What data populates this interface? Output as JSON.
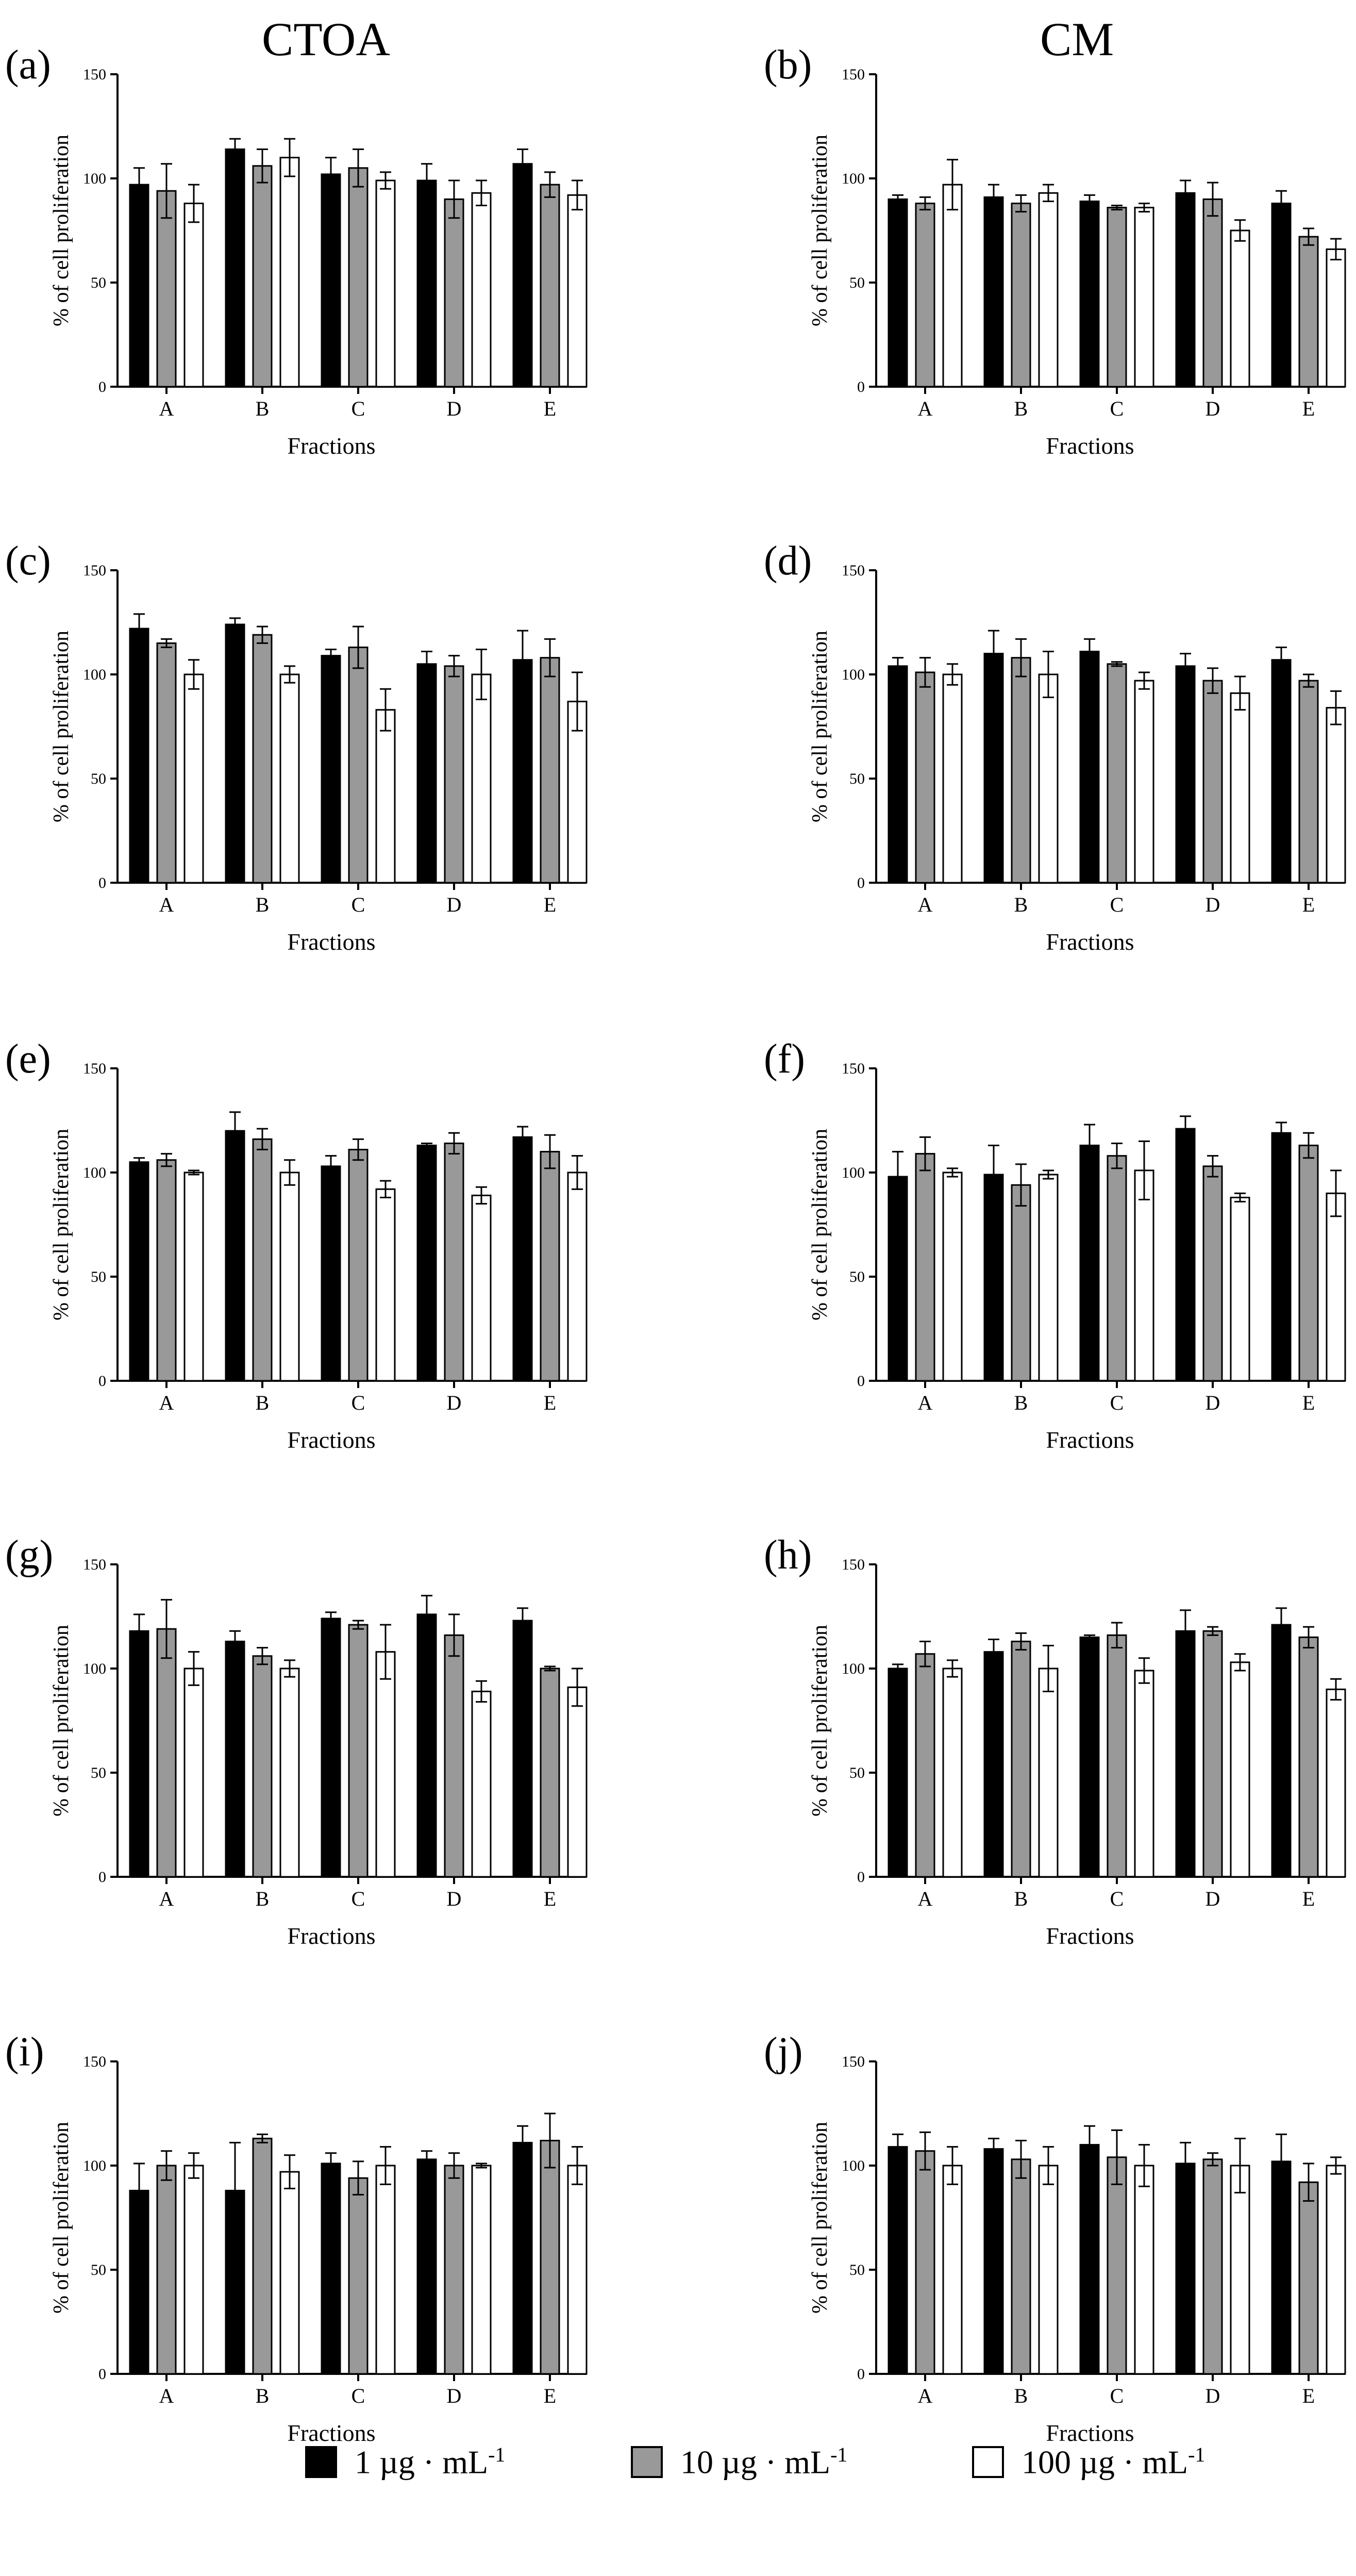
{
  "column_titles": {
    "left": "CTOA",
    "right": "CM"
  },
  "colors": {
    "1": "#000000",
    "10": "#999999",
    "100": "#ffffff"
  },
  "legend": [
    {
      "key": "1",
      "text": "1 µg · mL",
      "sup": "-1"
    },
    {
      "key": "10",
      "text": "10 µg · mL",
      "sup": "-1"
    },
    {
      "key": "100",
      "text": "100 µg · mL",
      "sup": "-1"
    }
  ],
  "chart_data": [
    {
      "type": "bar",
      "panel": "(a)",
      "title": "",
      "xlabel": "Fractions",
      "ylabel": "% of cell proliferation",
      "categories": [
        "A",
        "B",
        "C",
        "D",
        "E"
      ],
      "ylim": [
        0,
        150
      ],
      "yticks": [
        0,
        50,
        100,
        150
      ],
      "series": [
        {
          "name": "1 µg·mL-1",
          "key": "1",
          "values": [
            97,
            114,
            102,
            99,
            107
          ],
          "errors": [
            8,
            5,
            8,
            8,
            7
          ]
        },
        {
          "name": "10 µg·mL-1",
          "key": "10",
          "values": [
            94,
            106,
            105,
            90,
            97
          ],
          "errors": [
            13,
            8,
            9,
            9,
            6
          ]
        },
        {
          "name": "100 µg·mL-1",
          "key": "100",
          "values": [
            88,
            110,
            99,
            93,
            92
          ],
          "errors": [
            9,
            9,
            4,
            6,
            7
          ]
        }
      ]
    },
    {
      "type": "bar",
      "panel": "(b)",
      "title": "",
      "xlabel": "Fractions",
      "ylabel": "% of cell proliferation",
      "categories": [
        "A",
        "B",
        "C",
        "D",
        "E"
      ],
      "ylim": [
        0,
        150
      ],
      "yticks": [
        0,
        50,
        100,
        150
      ],
      "series": [
        {
          "name": "1 µg·mL-1",
          "key": "1",
          "values": [
            90,
            91,
            89,
            93,
            88
          ],
          "errors": [
            2,
            6,
            3,
            6,
            6
          ]
        },
        {
          "name": "10 µg·mL-1",
          "key": "10",
          "values": [
            88,
            88,
            86,
            90,
            72
          ],
          "errors": [
            3,
            4,
            1,
            8,
            4
          ]
        },
        {
          "name": "100 µg·mL-1",
          "key": "100",
          "values": [
            97,
            93,
            86,
            75,
            66
          ],
          "errors": [
            12,
            4,
            2,
            5,
            5
          ]
        }
      ]
    },
    {
      "type": "bar",
      "panel": "(c)",
      "title": "",
      "xlabel": "Fractions",
      "ylabel": "% of cell proliferation",
      "categories": [
        "A",
        "B",
        "C",
        "D",
        "E"
      ],
      "ylim": [
        0,
        150
      ],
      "yticks": [
        0,
        50,
        100,
        150
      ],
      "series": [
        {
          "name": "1 µg·mL-1",
          "key": "1",
          "values": [
            122,
            124,
            109,
            105,
            107
          ],
          "errors": [
            7,
            3,
            3,
            6,
            14
          ]
        },
        {
          "name": "10 µg·mL-1",
          "key": "10",
          "values": [
            115,
            119,
            113,
            104,
            108
          ],
          "errors": [
            2,
            4,
            10,
            5,
            9
          ]
        },
        {
          "name": "100 µg·mL-1",
          "key": "100",
          "values": [
            100,
            100,
            83,
            100,
            87
          ],
          "errors": [
            7,
            4,
            10,
            12,
            14
          ]
        }
      ]
    },
    {
      "type": "bar",
      "panel": "(d)",
      "title": "",
      "xlabel": "Fractions",
      "ylabel": "% of cell proliferation",
      "categories": [
        "A",
        "B",
        "C",
        "D",
        "E"
      ],
      "ylim": [
        0,
        150
      ],
      "yticks": [
        0,
        50,
        100,
        150
      ],
      "series": [
        {
          "name": "1 µg·mL-1",
          "key": "1",
          "values": [
            104,
            110,
            111,
            104,
            107
          ],
          "errors": [
            4,
            11,
            6,
            6,
            6
          ]
        },
        {
          "name": "10 µg·mL-1",
          "key": "10",
          "values": [
            101,
            108,
            105,
            97,
            97
          ],
          "errors": [
            7,
            9,
            1,
            6,
            3
          ]
        },
        {
          "name": "100 µg·mL-1",
          "key": "100",
          "values": [
            100,
            100,
            97,
            91,
            84
          ],
          "errors": [
            5,
            11,
            4,
            8,
            8
          ]
        }
      ]
    },
    {
      "type": "bar",
      "panel": "(e)",
      "title": "",
      "xlabel": "Fractions",
      "ylabel": "% of cell proliferation",
      "categories": [
        "A",
        "B",
        "C",
        "D",
        "E"
      ],
      "ylim": [
        0,
        150
      ],
      "yticks": [
        0,
        50,
        100,
        150
      ],
      "series": [
        {
          "name": "1 µg·mL-1",
          "key": "1",
          "values": [
            105,
            120,
            103,
            113,
            117
          ],
          "errors": [
            2,
            9,
            5,
            1,
            5
          ]
        },
        {
          "name": "10 µg·mL-1",
          "key": "10",
          "values": [
            106,
            116,
            111,
            114,
            110
          ],
          "errors": [
            3,
            5,
            5,
            5,
            8
          ]
        },
        {
          "name": "100 µg·mL-1",
          "key": "100",
          "values": [
            100,
            100,
            92,
            89,
            100
          ],
          "errors": [
            1,
            6,
            4,
            4,
            8
          ]
        }
      ]
    },
    {
      "type": "bar",
      "panel": "(f)",
      "title": "",
      "xlabel": "Fractions",
      "ylabel": "% of cell proliferation",
      "categories": [
        "A",
        "B",
        "C",
        "D",
        "E"
      ],
      "ylim": [
        0,
        150
      ],
      "yticks": [
        0,
        50,
        100,
        150
      ],
      "series": [
        {
          "name": "1 µg·mL-1",
          "key": "1",
          "values": [
            98,
            99,
            113,
            121,
            119
          ],
          "errors": [
            12,
            14,
            10,
            6,
            5
          ]
        },
        {
          "name": "10 µg·mL-1",
          "key": "10",
          "values": [
            109,
            94,
            108,
            103,
            113
          ],
          "errors": [
            8,
            10,
            6,
            5,
            6
          ]
        },
        {
          "name": "100 µg·mL-1",
          "key": "100",
          "values": [
            100,
            99,
            101,
            88,
            90
          ],
          "errors": [
            2,
            2,
            14,
            2,
            11
          ]
        }
      ]
    },
    {
      "type": "bar",
      "panel": "(g)",
      "title": "",
      "xlabel": "Fractions",
      "ylabel": "% of cell proliferation",
      "categories": [
        "A",
        "B",
        "C",
        "D",
        "E"
      ],
      "ylim": [
        0,
        150
      ],
      "yticks": [
        0,
        50,
        100,
        150
      ],
      "series": [
        {
          "name": "1 µg·mL-1",
          "key": "1",
          "values": [
            118,
            113,
            124,
            126,
            123
          ],
          "errors": [
            8,
            5,
            3,
            9,
            6
          ]
        },
        {
          "name": "10 µg·mL-1",
          "key": "10",
          "values": [
            119,
            106,
            121,
            116,
            100
          ],
          "errors": [
            14,
            4,
            2,
            10,
            1
          ]
        },
        {
          "name": "100 µg·mL-1",
          "key": "100",
          "values": [
            100,
            100,
            108,
            89,
            91
          ],
          "errors": [
            8,
            4,
            13,
            5,
            9
          ]
        }
      ]
    },
    {
      "type": "bar",
      "panel": "(h)",
      "title": "",
      "xlabel": "Fractions",
      "ylabel": "% of cell proliferation",
      "categories": [
        "A",
        "B",
        "C",
        "D",
        "E"
      ],
      "ylim": [
        0,
        150
      ],
      "yticks": [
        0,
        50,
        100,
        150
      ],
      "series": [
        {
          "name": "1 µg·mL-1",
          "key": "1",
          "values": [
            100,
            108,
            115,
            118,
            121
          ],
          "errors": [
            2,
            6,
            1,
            10,
            8
          ]
        },
        {
          "name": "10 µg·mL-1",
          "key": "10",
          "values": [
            107,
            113,
            116,
            118,
            115
          ],
          "errors": [
            6,
            4,
            6,
            2,
            5
          ]
        },
        {
          "name": "100 µg·mL-1",
          "key": "100",
          "values": [
            100,
            100,
            99,
            103,
            90
          ],
          "errors": [
            4,
            11,
            6,
            4,
            5
          ]
        }
      ]
    },
    {
      "type": "bar",
      "panel": "(i)",
      "title": "",
      "xlabel": "Fractions",
      "ylabel": "% of cell proliferation",
      "categories": [
        "A",
        "B",
        "C",
        "D",
        "E"
      ],
      "ylim": [
        0,
        150
      ],
      "yticks": [
        0,
        50,
        100,
        150
      ],
      "series": [
        {
          "name": "1 µg·mL-1",
          "key": "1",
          "values": [
            88,
            88,
            101,
            103,
            111
          ],
          "errors": [
            13,
            23,
            5,
            4,
            8
          ]
        },
        {
          "name": "10 µg·mL-1",
          "key": "10",
          "values": [
            100,
            113,
            94,
            100,
            112
          ],
          "errors": [
            7,
            2,
            8,
            6,
            13
          ]
        },
        {
          "name": "100 µg·mL-1",
          "key": "100",
          "values": [
            100,
            97,
            100,
            100,
            100
          ],
          "errors": [
            6,
            8,
            9,
            1,
            9
          ]
        }
      ]
    },
    {
      "type": "bar",
      "panel": "(j)",
      "title": "",
      "xlabel": "Fractions",
      "ylabel": "% of cell proliferation",
      "categories": [
        "A",
        "B",
        "C",
        "D",
        "E"
      ],
      "ylim": [
        0,
        150
      ],
      "yticks": [
        0,
        50,
        100,
        150
      ],
      "series": [
        {
          "name": "1 µg·mL-1",
          "key": "1",
          "values": [
            109,
            108,
            110,
            101,
            102
          ],
          "errors": [
            6,
            5,
            9,
            10,
            13
          ]
        },
        {
          "name": "10 µg·mL-1",
          "key": "10",
          "values": [
            107,
            103,
            104,
            103,
            92
          ],
          "errors": [
            9,
            9,
            13,
            3,
            9
          ]
        },
        {
          "name": "100 µg·mL-1",
          "key": "100",
          "values": [
            100,
            100,
            100,
            100,
            100
          ],
          "errors": [
            9,
            9,
            10,
            13,
            4
          ]
        }
      ]
    }
  ]
}
